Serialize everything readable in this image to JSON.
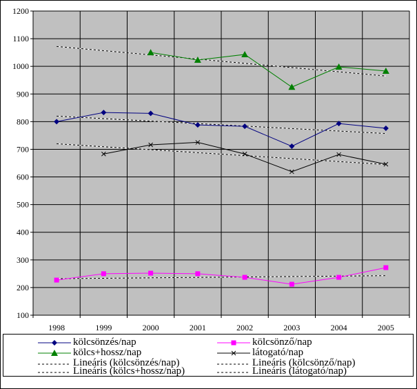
{
  "chart_data": {
    "type": "line",
    "title": "",
    "xlabel": "",
    "ylabel": "",
    "categories": [
      "1998",
      "1999",
      "2000",
      "2001",
      "2002",
      "2003",
      "2004",
      "2005"
    ],
    "ylim": [
      100,
      1200
    ],
    "yticks": [
      "100",
      "200",
      "300",
      "400",
      "500",
      "600",
      "700",
      "800",
      "900",
      "1000",
      "1100",
      "1200"
    ],
    "grid": true,
    "legend_position": "bottom",
    "series": [
      {
        "name": "kölcsönzés/nap",
        "color": "#000080",
        "marker": "diamond",
        "values": [
          800,
          833,
          830,
          788,
          783,
          711,
          793,
          776
        ]
      },
      {
        "name": "kölcsönző/nap",
        "color": "#ff00ff",
        "marker": "square",
        "values": [
          227,
          250,
          252,
          250,
          237,
          212,
          237,
          272
        ]
      },
      {
        "name": "kölcs+hossz/nap",
        "color": "#008000",
        "marker": "triangle",
        "values": [
          null,
          null,
          1050,
          1023,
          1043,
          925,
          998,
          983
        ]
      },
      {
        "name": "látogató/nap",
        "color": "#000000",
        "marker": "x",
        "values": [
          null,
          683,
          716,
          725,
          683,
          619,
          681,
          646
        ]
      }
    ],
    "trendlines": [
      {
        "name": "Lineáris (kölcsönzés/nap)",
        "start": 820,
        "end": 757
      },
      {
        "name": "Lineáris (kölcsönző/nap)",
        "start": 232,
        "end": 243
      },
      {
        "name": "Lineáris (kölcs+hossz/nap)",
        "start": 1072,
        "end": 965
      },
      {
        "name": "Lineáris (látogató/nap)",
        "start": 720,
        "end": 645
      }
    ]
  }
}
